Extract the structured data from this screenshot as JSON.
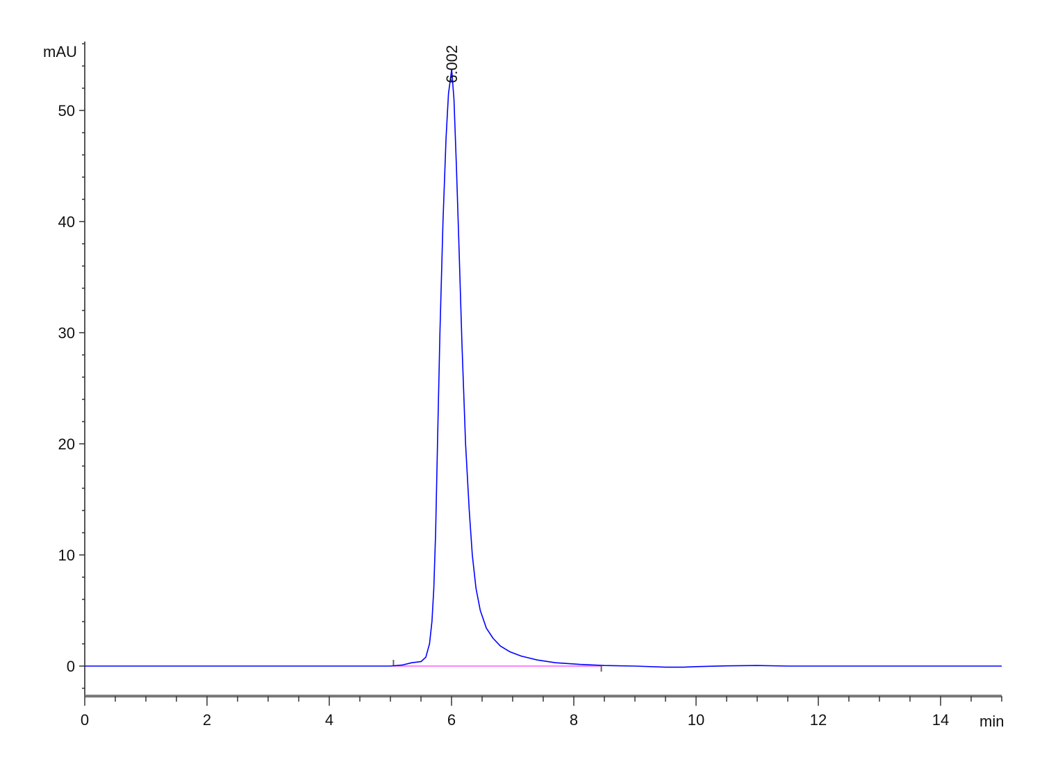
{
  "chart_data": {
    "type": "line",
    "ylabel": "mAU",
    "xlabel": "min",
    "xlim": [
      0,
      15
    ],
    "ylim": [
      -2.7,
      56.2
    ],
    "x_ticks": [
      "0",
      "2",
      "4",
      "6",
      "8",
      "10",
      "12",
      "14"
    ],
    "y_ticks": [
      "0",
      "10",
      "20",
      "30",
      "40",
      "50"
    ],
    "grid": false,
    "series": [
      {
        "color": "#0000ff",
        "points": [
          [
            0,
            0
          ],
          [
            5.0,
            0
          ],
          [
            5.2,
            0.1
          ],
          [
            5.35,
            0.3
          ],
          [
            5.5,
            0.4
          ],
          [
            5.58,
            0.8
          ],
          [
            5.64,
            2.0
          ],
          [
            5.68,
            4.0
          ],
          [
            5.71,
            7.0
          ],
          [
            5.74,
            12.0
          ],
          [
            5.77,
            20.0
          ],
          [
            5.81,
            30.0
          ],
          [
            5.86,
            40.0
          ],
          [
            5.91,
            47.5
          ],
          [
            5.95,
            51.5
          ],
          [
            6.002,
            53.7
          ],
          [
            6.04,
            51.0
          ],
          [
            6.08,
            45.0
          ],
          [
            6.12,
            38.0
          ],
          [
            6.17,
            29.0
          ],
          [
            6.23,
            20.0
          ],
          [
            6.29,
            14.0
          ],
          [
            6.34,
            10.0
          ],
          [
            6.4,
            7.0
          ],
          [
            6.47,
            5.0
          ],
          [
            6.57,
            3.4
          ],
          [
            6.68,
            2.5
          ],
          [
            6.8,
            1.8
          ],
          [
            6.95,
            1.3
          ],
          [
            7.14,
            0.9
          ],
          [
            7.4,
            0.55
          ],
          [
            7.7,
            0.3
          ],
          [
            8.1,
            0.15
          ],
          [
            8.5,
            0.05
          ],
          [
            9.0,
            0.0
          ],
          [
            9.5,
            -0.1
          ],
          [
            9.8,
            -0.1
          ],
          [
            10.0,
            -0.05
          ],
          [
            10.5,
            0.02
          ],
          [
            11.0,
            0.05
          ],
          [
            11.5,
            0.0
          ],
          [
            15.0,
            0.0
          ]
        ]
      }
    ],
    "integration_baseline": {
      "color": "#ff80ff",
      "start": 5.05,
      "end": 8.45
    },
    "annotations": [
      {
        "x": 6.002,
        "y": 53.7,
        "text": "6.002"
      }
    ]
  }
}
